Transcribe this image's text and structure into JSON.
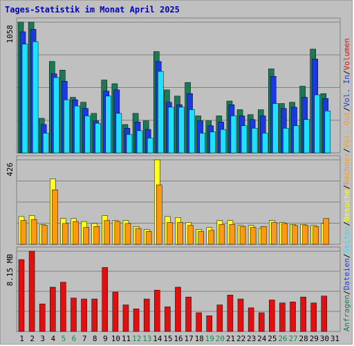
{
  "chart_data": {
    "type": "bar",
    "title": "Tages-Statistik im Monat April 2025",
    "days": [
      "1",
      "2",
      "3",
      "4",
      "5",
      "6",
      "7",
      "8",
      "9",
      "10",
      "11",
      "12",
      "13",
      "14",
      "15",
      "16",
      "17",
      "18",
      "19",
      "20",
      "21",
      "22",
      "23",
      "24",
      "25",
      "26",
      "27",
      "28",
      "29",
      "30",
      "31"
    ],
    "weekend_days": [
      "5",
      "6",
      "12",
      "13",
      "19",
      "20",
      "26",
      "27"
    ],
    "colors": {
      "background": "#c0c0c0",
      "grid": "#808080",
      "title": "#0000c0",
      "anfragen": "#1a7a55",
      "dateien": "#1a3adf",
      "seiten": "#20e0ff",
      "besuche": "#ffff20",
      "rechner": "#ff9a10",
      "volumen": "#e01010",
      "weekday_label": "#000000",
      "weekend_label": "#1a8a55"
    },
    "panels": [
      {
        "id": "hits",
        "ylabel_max": "1058",
        "ymax": 1058,
        "series": [
          {
            "name": "Anfragen",
            "values": [
              1058,
              1058,
              280,
              740,
              670,
              450,
              410,
              320,
              590,
              560,
              230,
              320,
              260,
              820,
              510,
              460,
              570,
              300,
              260,
              300,
              420,
              350,
              310,
              350,
              680,
              400,
              410,
              540,
              840,
              480,
              0
            ]
          },
          {
            "name": "Dateien",
            "values": [
              980,
              1000,
              230,
              640,
              580,
              430,
              360,
              260,
              500,
              510,
              200,
              250,
              190,
              740,
              410,
              390,
              480,
              260,
              220,
              250,
              390,
              300,
              270,
              300,
              620,
              360,
              370,
              450,
              760,
              440,
              0
            ]
          },
          {
            "name": "Seiten",
            "values": [
              880,
              900,
              160,
              610,
              430,
              380,
              300,
              240,
              460,
              320,
              150,
              180,
              120,
              660,
              370,
              370,
              350,
              160,
              170,
              190,
              300,
              220,
              200,
              160,
              400,
              200,
              220,
              270,
              470,
              340,
              0
            ]
          }
        ]
      },
      {
        "id": "visits",
        "ylabel_max": "426",
        "ymax": 426,
        "series": [
          {
            "name": "Besuche",
            "values": [
              140,
              145,
              100,
              330,
              130,
              130,
              115,
              105,
              145,
              120,
              120,
              90,
              75,
              426,
              140,
              135,
              110,
              75,
              85,
              120,
              120,
              95,
              95,
              80,
              120,
              110,
              100,
              100,
              95,
              105,
              0
            ]
          },
          {
            "name": "Rechner",
            "values": [
              120,
              125,
              95,
              275,
              105,
              115,
              85,
              90,
              120,
              115,
              105,
              80,
              65,
              300,
              110,
              110,
              95,
              65,
              70,
              100,
              100,
              90,
              85,
              90,
              110,
              105,
              95,
              95,
              90,
              130,
              0
            ]
          }
        ]
      },
      {
        "id": "volume",
        "ylabel_max": "8.15 MB",
        "ymax": 8.15,
        "series": [
          {
            "name": "Volumen",
            "values": [
              7.3,
              8.15,
              2.8,
              4.5,
              5.0,
              3.4,
              3.3,
              3.3,
              6.5,
              4.0,
              2.7,
              2.3,
              3.3,
              4.2,
              2.5,
              4.5,
              3.5,
              1.9,
              1.6,
              2.7,
              3.7,
              3.3,
              2.4,
              1.9,
              3.2,
              2.9,
              3.0,
              3.5,
              2.9,
              3.6,
              0
            ]
          }
        ]
      }
    ],
    "right_legend": [
      {
        "text": "Anfragen",
        "color_key": "anfragen"
      },
      {
        "text": "/",
        "color_key": "weekday_label"
      },
      {
        "text": "Dateien",
        "color_key": "dateien"
      },
      {
        "text": "/",
        "color_key": "weekday_label"
      },
      {
        "text": "Seiten",
        "color_key": "seiten"
      },
      {
        "text": "/",
        "color_key": "weekday_label"
      },
      {
        "text": "Besuche",
        "color_key": "besuche"
      },
      {
        "text": "/",
        "color_key": "weekday_label"
      },
      {
        "text": "Rechner",
        "color_key": "rechner"
      },
      {
        "text": "/",
        "color_key": "weekday_label"
      },
      {
        "text": "Vol. Out",
        "color_key": "rechner"
      },
      {
        "text": "/",
        "color_key": "weekday_label"
      },
      {
        "text": "Vol. In",
        "color_key": "dateien"
      },
      {
        "text": "/",
        "color_key": "weekday_label"
      },
      {
        "text": "Volumen",
        "color_key": "volumen"
      }
    ]
  }
}
